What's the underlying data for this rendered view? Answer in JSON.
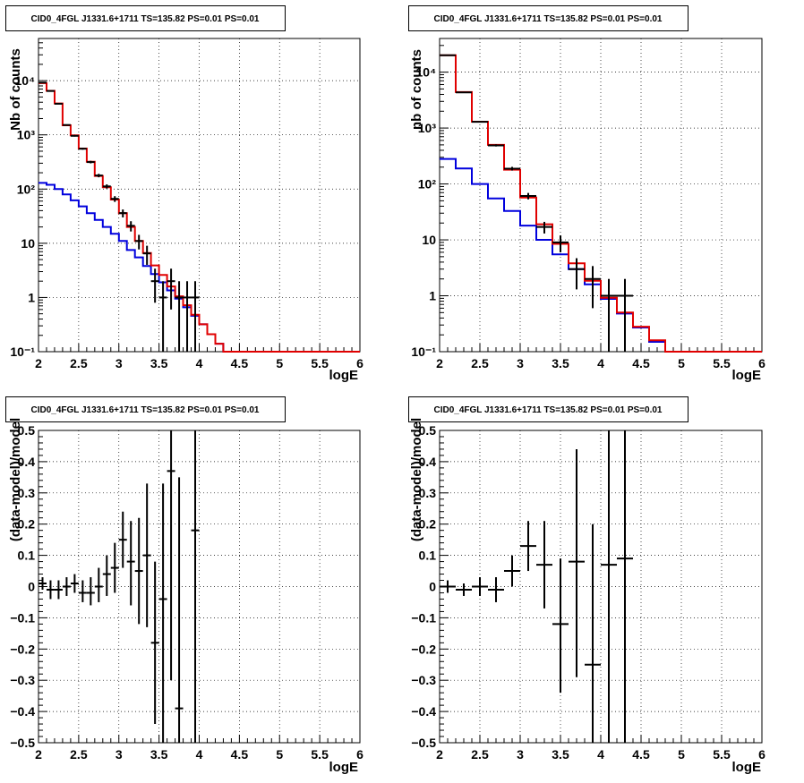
{
  "colors": {
    "total_model": "#e00000",
    "source_model": "#0000dd",
    "data": "#000000"
  },
  "chart_data": [
    {
      "type": "line",
      "title": "CID0_4FGL J1331.6+1711 TS=135.82 PS=0.01 PS=0.01",
      "xlabel": "logE",
      "ylabel": "Nb of counts",
      "xlim": [
        2,
        6
      ],
      "ylim": [
        0.1,
        60000
      ],
      "yscale": "log",
      "grid": true,
      "x_ticks": [
        "2",
        "2.5",
        "3",
        "3.5",
        "4",
        "4.5",
        "5",
        "5.5",
        "6"
      ],
      "y_ticks": [
        "10⁻¹",
        "1",
        "10",
        "10²",
        "10³",
        "10⁴"
      ],
      "bin_edges": [
        2.0,
        2.1,
        2.2,
        2.3,
        2.4,
        2.5,
        2.6,
        2.7,
        2.8,
        2.9,
        3.0,
        3.1,
        3.2,
        3.3,
        3.4,
        3.5,
        3.6,
        3.7,
        3.8,
        3.9,
        4.0,
        4.1,
        4.2,
        4.3,
        4.4,
        4.5,
        4.6,
        4.7,
        4.8,
        4.9,
        5.0,
        5.1,
        5.2,
        5.3,
        5.4,
        5.5,
        5.6,
        5.7,
        5.8,
        5.9,
        6.0
      ],
      "series": [
        {
          "values": [
            9000,
            6500,
            3800,
            1500,
            980,
            560,
            320,
            175,
            108,
            64,
            36,
            20,
            11,
            6.6,
            3.9,
            2.6,
            1.6,
            1.05,
            0.72,
            0.48,
            0.32,
            0.21,
            0.14,
            0.1,
            0.1,
            0.1,
            0.1,
            0.1,
            0.1,
            0.1,
            0.1,
            0.1,
            0.1,
            0.1,
            0.1,
            0.1,
            0.1,
            0.1,
            0.1,
            0.1
          ]
        },
        {
          "values": [
            130,
            120,
            100,
            80,
            62,
            48,
            36,
            27,
            20,
            15,
            11,
            7.5,
            5.5,
            3.8,
            2.7,
            1.9,
            1.35,
            0.95,
            0.66,
            0.46,
            0.32,
            0.21,
            0.14,
            0.1,
            0.1,
            0.1,
            0.1,
            0.1,
            0.1,
            0.1,
            0.1,
            0.1,
            0.1,
            0.1,
            0.1,
            0.1,
            0.1,
            0.1,
            0.1,
            0.1
          ]
        }
      ],
      "points": [
        {
          "x": 2.05,
          "y": 9200,
          "lo": 9100,
          "hi": 9300
        },
        {
          "x": 2.15,
          "y": 6450,
          "lo": 6370,
          "hi": 6530
        },
        {
          "x": 2.25,
          "y": 3750,
          "lo": 3690,
          "hi": 3810
        },
        {
          "x": 2.35,
          "y": 1520,
          "lo": 1480,
          "hi": 1560
        },
        {
          "x": 2.45,
          "y": 960,
          "lo": 930,
          "hi": 990
        },
        {
          "x": 2.55,
          "y": 555,
          "lo": 532,
          "hi": 578
        },
        {
          "x": 2.65,
          "y": 315,
          "lo": 298,
          "hi": 332
        },
        {
          "x": 2.75,
          "y": 178,
          "lo": 165,
          "hi": 191
        },
        {
          "x": 2.85,
          "y": 112,
          "lo": 102,
          "hi": 122
        },
        {
          "x": 2.95,
          "y": 66,
          "lo": 58,
          "hi": 74
        },
        {
          "x": 3.05,
          "y": 36,
          "lo": 30,
          "hi": 42
        },
        {
          "x": 3.15,
          "y": 21,
          "lo": 16.5,
          "hi": 25.5
        },
        {
          "x": 3.25,
          "y": 11,
          "lo": 7.7,
          "hi": 14.3
        },
        {
          "x": 3.35,
          "y": 6.5,
          "lo": 4,
          "hi": 9
        },
        {
          "x": 3.45,
          "y": 2,
          "lo": 0.8,
          "hi": 3.4
        },
        {
          "x": 3.55,
          "y": 1,
          "lo": 0.1,
          "hi": 2
        },
        {
          "x": 3.65,
          "y": 2,
          "lo": 0.6,
          "hi": 3.4
        },
        {
          "x": 3.75,
          "y": 1,
          "lo": 0.1,
          "hi": 2
        },
        {
          "x": 3.85,
          "y": 1,
          "lo": 0.1,
          "hi": 2
        },
        {
          "x": 3.95,
          "y": 1,
          "lo": 0.1,
          "hi": 2
        }
      ]
    },
    {
      "type": "line",
      "title": "CID0_4FGL J1331.6+1711 TS=135.82 PS=0.01 PS=0.01",
      "xlabel": "logE",
      "ylabel": "nb of counts",
      "xlim": [
        2,
        6
      ],
      "ylim": [
        0.1,
        40000
      ],
      "yscale": "log",
      "grid": true,
      "x_ticks": [
        "2",
        "2.5",
        "3",
        "3.5",
        "4",
        "4.5",
        "5",
        "5.5",
        "6"
      ],
      "y_ticks": [
        "10⁻¹",
        "1",
        "10",
        "10²",
        "10³",
        "10⁴"
      ],
      "bin_edges": [
        2.0,
        2.2,
        2.4,
        2.6,
        2.8,
        3.0,
        3.2,
        3.4,
        3.6,
        3.8,
        4.0,
        4.2,
        4.4,
        4.6,
        4.8,
        5.0,
        5.2,
        5.4,
        5.6,
        5.8,
        6.0
      ],
      "series": [
        {
          "values": [
            20000,
            4400,
            1300,
            500,
            180,
            57,
            19,
            8.5,
            3.8,
            1.85,
            0.92,
            0.5,
            0.28,
            0.16,
            0.1,
            0.1,
            0.1,
            0.1,
            0.1,
            0.1
          ]
        },
        {
          "values": [
            280,
            190,
            100,
            55,
            33,
            18,
            10,
            5.5,
            3.0,
            1.6,
            0.88,
            0.48,
            0.27,
            0.15,
            0.1,
            0.1,
            0.1,
            0.1,
            0.1,
            0.1
          ]
        }
      ],
      "points": [
        {
          "x": 2.1,
          "y": 20000,
          "lo": 19860,
          "hi": 20140
        },
        {
          "x": 2.3,
          "y": 4350,
          "lo": 4284,
          "hi": 4416
        },
        {
          "x": 2.5,
          "y": 1290,
          "lo": 1254,
          "hi": 1326
        },
        {
          "x": 2.7,
          "y": 490,
          "lo": 468,
          "hi": 512
        },
        {
          "x": 2.9,
          "y": 188,
          "lo": 174,
          "hi": 202
        },
        {
          "x": 3.1,
          "y": 61,
          "lo": 53,
          "hi": 69
        },
        {
          "x": 3.3,
          "y": 17,
          "lo": 13,
          "hi": 21
        },
        {
          "x": 3.5,
          "y": 9,
          "lo": 6,
          "hi": 12
        },
        {
          "x": 3.7,
          "y": 3,
          "lo": 1.3,
          "hi": 4.7
        },
        {
          "x": 3.9,
          "y": 2,
          "lo": 0.6,
          "hi": 3.4
        },
        {
          "x": 4.1,
          "y": 1,
          "lo": 0.1,
          "hi": 2
        },
        {
          "x": 4.3,
          "y": 1,
          "lo": 0.1,
          "hi": 2
        }
      ]
    },
    {
      "type": "scatter",
      "title": "CID0_4FGL J1331.6+1711 TS=135.82 PS=0.01 PS=0.01",
      "xlabel": "logE",
      "ylabel": "(data-model)/model",
      "xlim": [
        2,
        6
      ],
      "ylim": [
        -0.5,
        0.5
      ],
      "grid": true,
      "x_ticks": [
        "2",
        "2.5",
        "3",
        "3.5",
        "4",
        "4.5",
        "5",
        "5.5",
        "6"
      ],
      "y_ticks": [
        "−0.5",
        "−0.4",
        "−0.3",
        "−0.2",
        "−0.1",
        "0",
        "0.1",
        "0.2",
        "0.3",
        "0.4",
        "0.5"
      ],
      "points": [
        {
          "x": 2.05,
          "y": 0.01,
          "lo": -0.01,
          "hi": 0.03,
          "w": 0.05
        },
        {
          "x": 2.15,
          "y": -0.01,
          "lo": -0.04,
          "hi": 0.02,
          "w": 0.05
        },
        {
          "x": 2.25,
          "y": -0.01,
          "lo": -0.04,
          "hi": 0.02,
          "w": 0.05
        },
        {
          "x": 2.35,
          "y": 0.0,
          "lo": -0.03,
          "hi": 0.03,
          "w": 0.05
        },
        {
          "x": 2.45,
          "y": 0.01,
          "lo": -0.02,
          "hi": 0.04,
          "w": 0.05
        },
        {
          "x": 2.55,
          "y": -0.02,
          "lo": -0.05,
          "hi": 0.02,
          "w": 0.05
        },
        {
          "x": 2.65,
          "y": -0.02,
          "lo": -0.06,
          "hi": 0.03,
          "w": 0.05
        },
        {
          "x": 2.75,
          "y": 0.0,
          "lo": -0.05,
          "hi": 0.06,
          "w": 0.05
        },
        {
          "x": 2.85,
          "y": 0.04,
          "lo": -0.03,
          "hi": 0.1,
          "w": 0.05
        },
        {
          "x": 2.95,
          "y": 0.06,
          "lo": -0.02,
          "hi": 0.14,
          "w": 0.05
        },
        {
          "x": 3.05,
          "y": 0.15,
          "lo": 0.06,
          "hi": 0.24,
          "w": 0.05
        },
        {
          "x": 3.15,
          "y": 0.08,
          "lo": -0.06,
          "hi": 0.21,
          "w": 0.05
        },
        {
          "x": 3.25,
          "y": 0.05,
          "lo": -0.12,
          "hi": 0.22,
          "w": 0.05
        },
        {
          "x": 3.35,
          "y": 0.1,
          "lo": -0.13,
          "hi": 0.33,
          "w": 0.05
        },
        {
          "x": 3.45,
          "y": -0.18,
          "lo": -0.44,
          "hi": 0.08,
          "w": 0.05
        },
        {
          "x": 3.55,
          "y": -0.04,
          "lo": -0.5,
          "hi": 0.33,
          "w": 0.05
        },
        {
          "x": 3.65,
          "y": 0.37,
          "lo": -0.3,
          "hi": 0.5,
          "w": 0.05
        },
        {
          "x": 3.75,
          "y": -0.39,
          "lo": -0.5,
          "hi": 0.35,
          "w": 0.05
        },
        {
          "x": 3.95,
          "y": 0.18,
          "lo": -0.5,
          "hi": 0.5,
          "w": 0.05
        }
      ]
    },
    {
      "type": "scatter",
      "title": "CID0_4FGL J1331.6+1711 TS=135.82 PS=0.01 PS=0.01",
      "xlabel": "logE",
      "ylabel": "(data-model)/model",
      "xlim": [
        2,
        6
      ],
      "ylim": [
        -0.5,
        0.5
      ],
      "grid": true,
      "x_ticks": [
        "2",
        "2.5",
        "3",
        "3.5",
        "4",
        "4.5",
        "5",
        "5.5",
        "6"
      ],
      "y_ticks": [
        "−0.5",
        "−0.4",
        "−0.3",
        "−0.2",
        "−0.1",
        "0",
        "0.1",
        "0.2",
        "0.3",
        "0.4",
        "0.5"
      ],
      "points": [
        {
          "x": 2.1,
          "y": 0.0,
          "lo": -0.02,
          "hi": 0.02,
          "w": 0.1
        },
        {
          "x": 2.3,
          "y": -0.01,
          "lo": -0.03,
          "hi": 0.01,
          "w": 0.1
        },
        {
          "x": 2.5,
          "y": 0.0,
          "lo": -0.03,
          "hi": 0.03,
          "w": 0.1
        },
        {
          "x": 2.7,
          "y": -0.01,
          "lo": -0.05,
          "hi": 0.03,
          "w": 0.1
        },
        {
          "x": 2.9,
          "y": 0.05,
          "lo": 0.0,
          "hi": 0.1,
          "w": 0.1
        },
        {
          "x": 3.1,
          "y": 0.13,
          "lo": 0.05,
          "hi": 0.21,
          "w": 0.1
        },
        {
          "x": 3.3,
          "y": 0.07,
          "lo": -0.07,
          "hi": 0.21,
          "w": 0.1
        },
        {
          "x": 3.5,
          "y": -0.12,
          "lo": -0.34,
          "hi": 0.09,
          "w": 0.1
        },
        {
          "x": 3.7,
          "y": 0.08,
          "lo": -0.29,
          "hi": 0.44,
          "w": 0.1
        },
        {
          "x": 3.9,
          "y": -0.25,
          "lo": -0.5,
          "hi": 0.2,
          "w": 0.1
        },
        {
          "x": 4.1,
          "y": 0.07,
          "lo": -0.5,
          "hi": 0.5,
          "w": 0.1
        },
        {
          "x": 4.3,
          "y": 0.09,
          "lo": -0.5,
          "hi": 0.5,
          "w": 0.1
        }
      ]
    }
  ]
}
